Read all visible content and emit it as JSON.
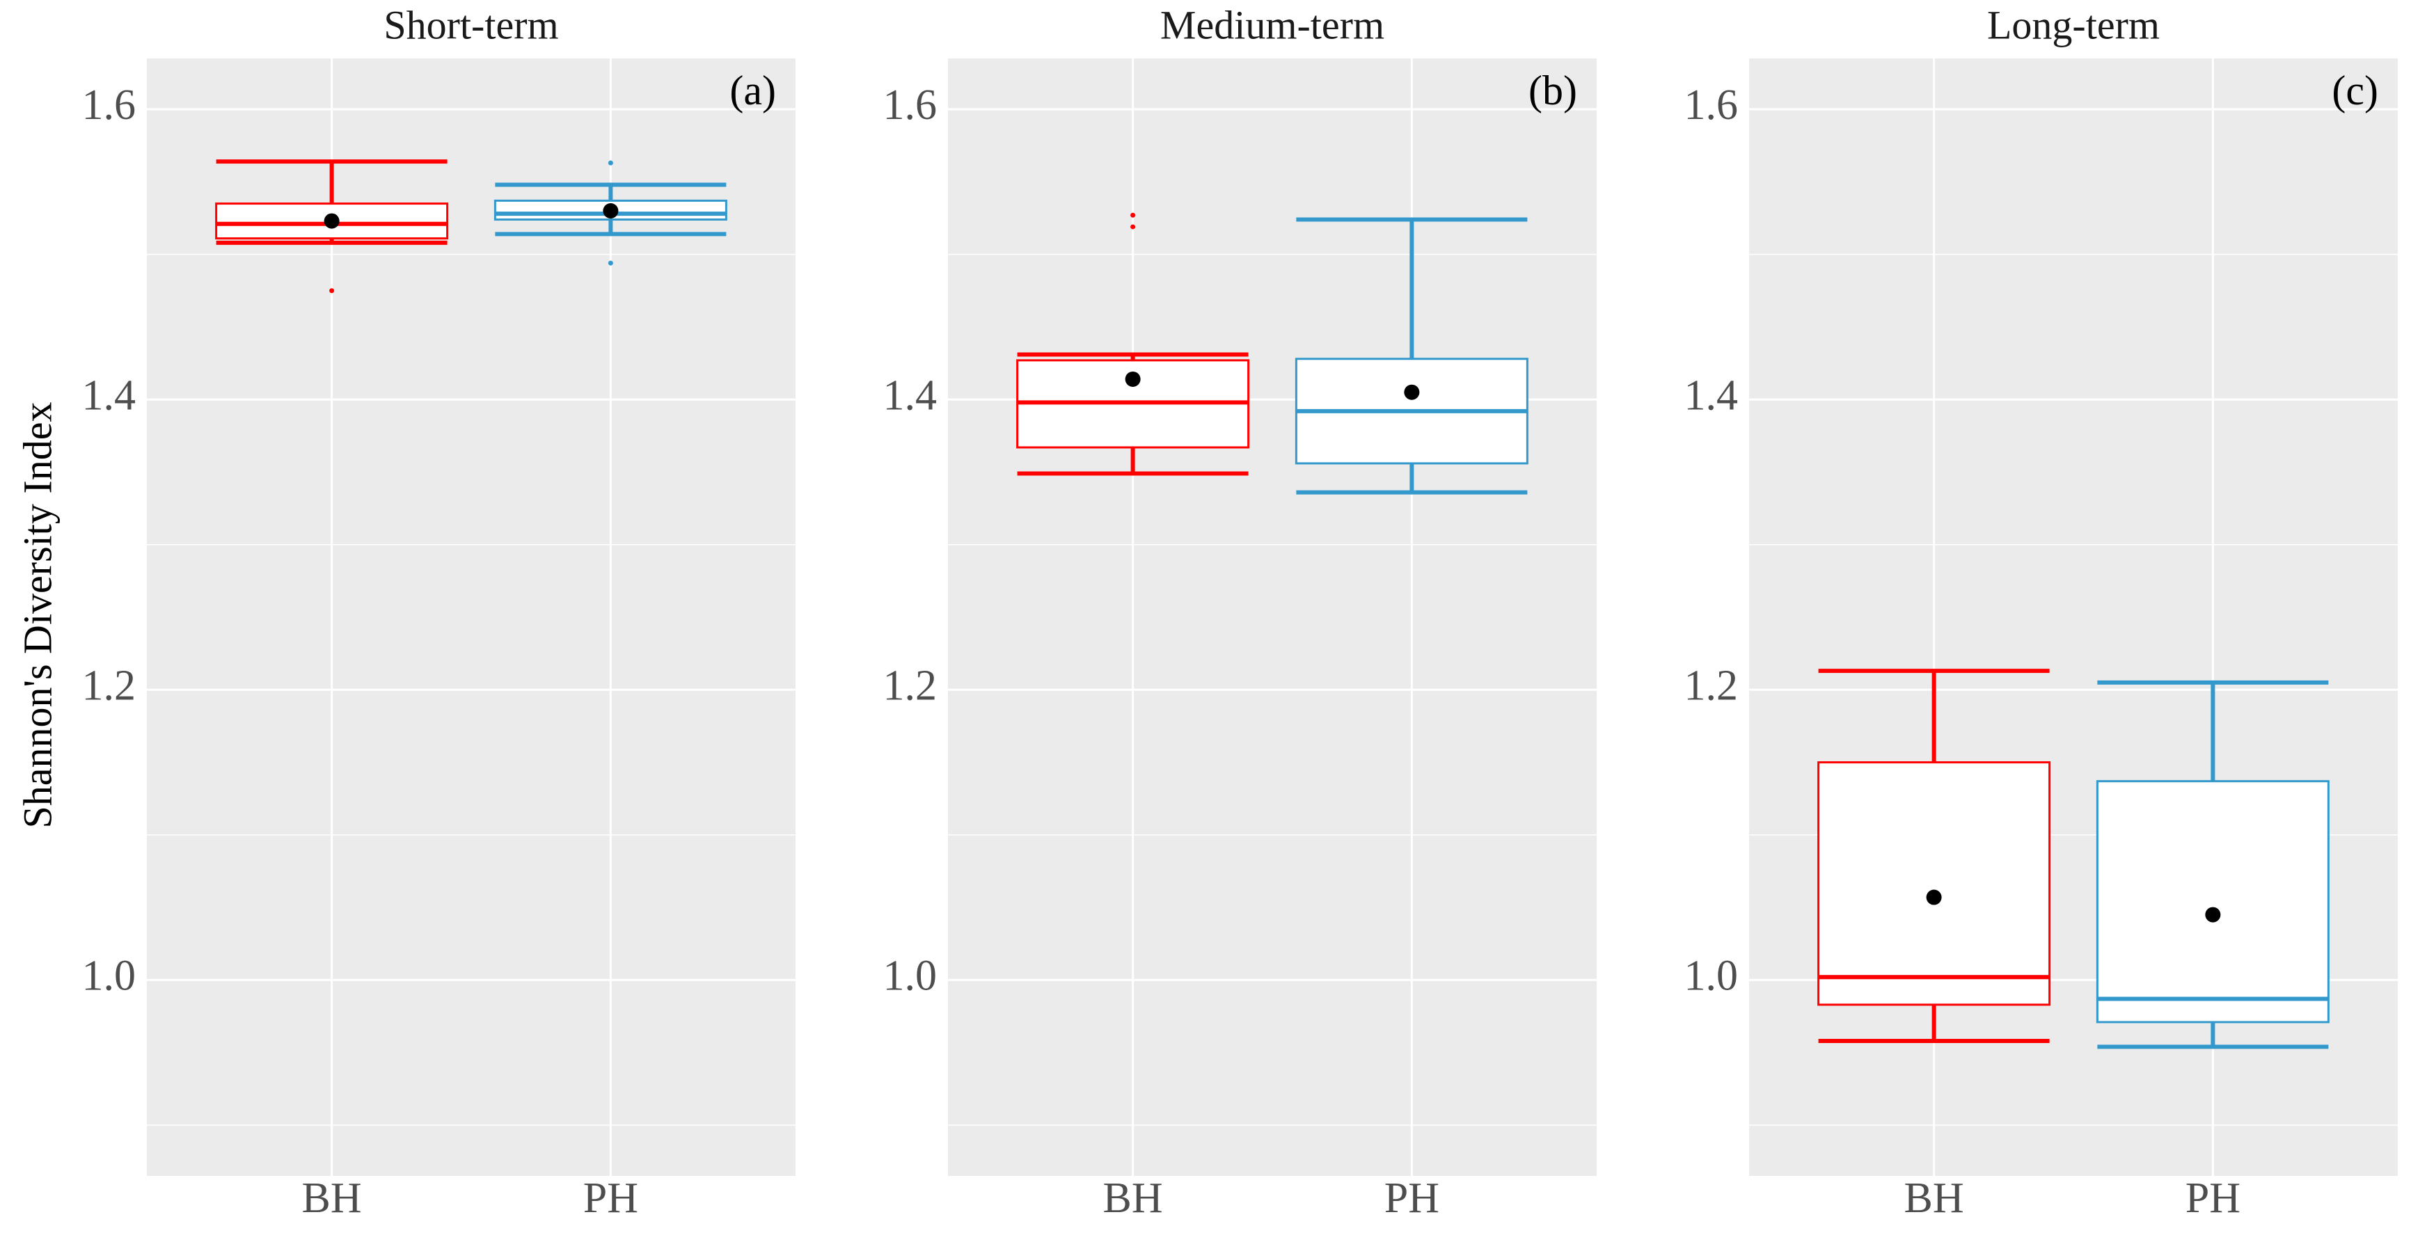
{
  "chart_data": {
    "type": "boxplot",
    "ylabel": "Shannon's Diversity Index",
    "xlabel": "",
    "ylim": [
      0.865,
      1.635
    ],
    "yticks": [
      1.0,
      1.2,
      1.4,
      1.6
    ],
    "ytick_labels": [
      "1.0",
      "1.2",
      "1.4",
      "1.6"
    ],
    "categories": [
      "BH",
      "PH"
    ],
    "colors": {
      "BH": "#ff0000",
      "PH": "#3399cc",
      "mean": "#000000",
      "panel_bg": "#ebebeb",
      "grid": "#ffffff"
    },
    "grid": true,
    "panels": [
      {
        "title": "Short-term",
        "tag": "(a)",
        "groups": [
          {
            "name": "BH",
            "min": 1.508,
            "q1": 1.511,
            "median": 1.521,
            "q3": 1.535,
            "max": 1.564,
            "mean": 1.523,
            "outliers": [
              1.475
            ]
          },
          {
            "name": "PH",
            "min": 1.514,
            "q1": 1.524,
            "median": 1.528,
            "q3": 1.537,
            "max": 1.548,
            "mean": 1.53,
            "outliers": [
              1.563,
              1.494
            ]
          }
        ]
      },
      {
        "title": "Medium-term",
        "tag": "(b)",
        "groups": [
          {
            "name": "BH",
            "min": 1.349,
            "q1": 1.367,
            "median": 1.398,
            "q3": 1.427,
            "max": 1.431,
            "mean": 1.414,
            "outliers": [
              1.527,
              1.519
            ]
          },
          {
            "name": "PH",
            "min": 1.336,
            "q1": 1.356,
            "median": 1.392,
            "q3": 1.428,
            "max": 1.524,
            "mean": 1.405,
            "outliers": []
          }
        ]
      },
      {
        "title": "Long-term",
        "tag": "(c)",
        "groups": [
          {
            "name": "BH",
            "min": 0.958,
            "q1": 0.983,
            "median": 1.002,
            "q3": 1.15,
            "max": 1.213,
            "mean": 1.057,
            "outliers": []
          },
          {
            "name": "PH",
            "min": 0.954,
            "q1": 0.971,
            "median": 0.987,
            "q3": 1.137,
            "max": 1.205,
            "mean": 1.045,
            "outliers": []
          }
        ]
      }
    ]
  }
}
